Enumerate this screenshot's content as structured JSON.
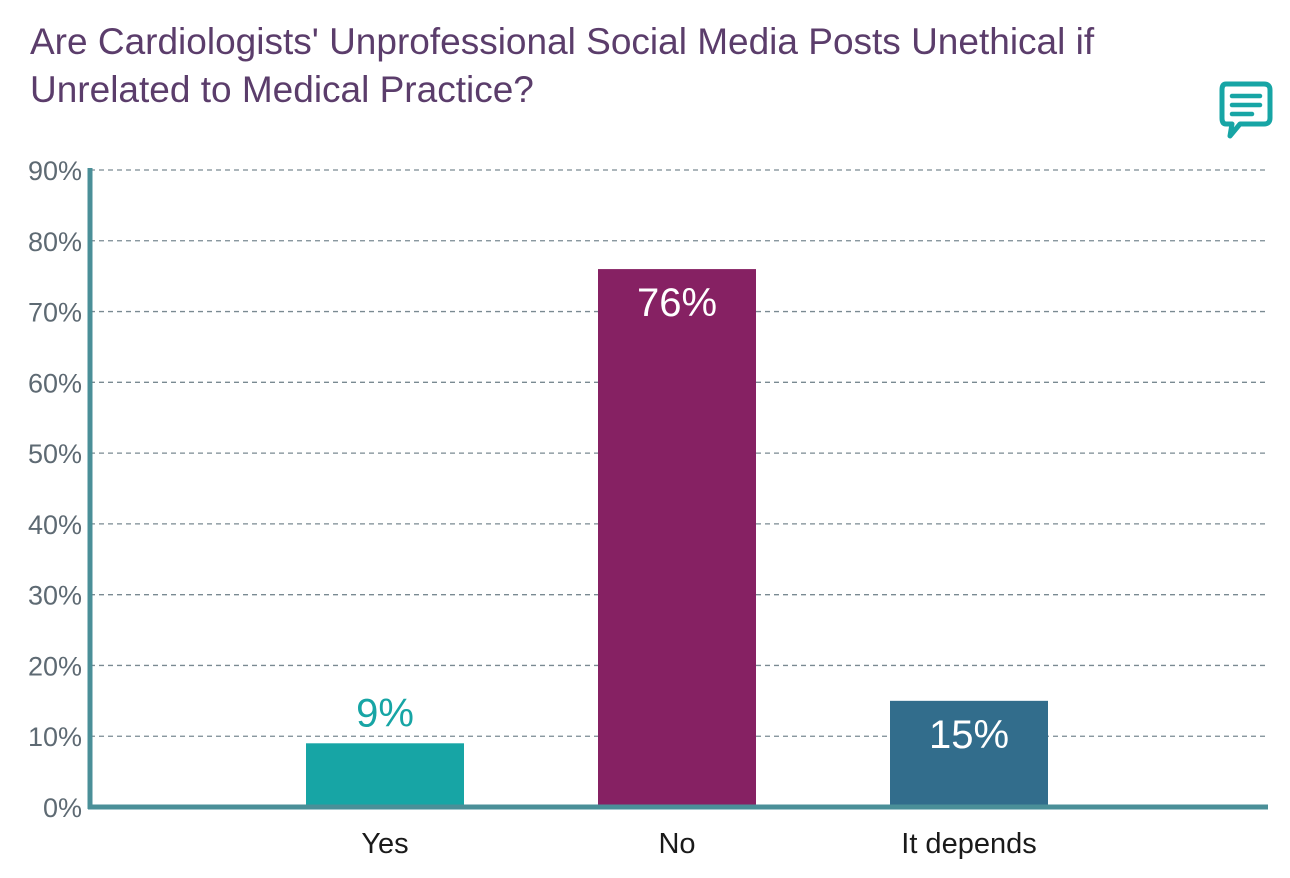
{
  "chart_data": {
    "type": "bar",
    "title": "Are Cardiologists' Unprofessional Social Media Posts Unethical if Unrelated to Medical Practice?",
    "categories": [
      "Yes",
      "No",
      "It depends"
    ],
    "values": [
      9,
      76,
      15
    ],
    "value_labels": [
      "9%",
      "76%",
      "15%"
    ],
    "bar_colors": [
      "#17a5a5",
      "#862163",
      "#326d8c"
    ],
    "label_colors": [
      "#17a5a5",
      "#ffffff",
      "#ffffff"
    ],
    "label_position": [
      "above",
      "inside",
      "inside"
    ],
    "ylim": [
      0,
      90
    ],
    "yticks": [
      0,
      10,
      20,
      30,
      40,
      50,
      60,
      70,
      80,
      90
    ],
    "ytick_labels": [
      "0%",
      "10%",
      "20%",
      "30%",
      "40%",
      "50%",
      "60%",
      "70%",
      "80%",
      "90%"
    ],
    "grid": true,
    "xlabel": "",
    "ylabel": ""
  },
  "colors": {
    "title": "#5b3d6b",
    "axis": "#4a8f98",
    "grid": "#7a8a92",
    "icon": "#17a5a5"
  },
  "icons": {
    "comment": "comment-bubble-icon"
  }
}
